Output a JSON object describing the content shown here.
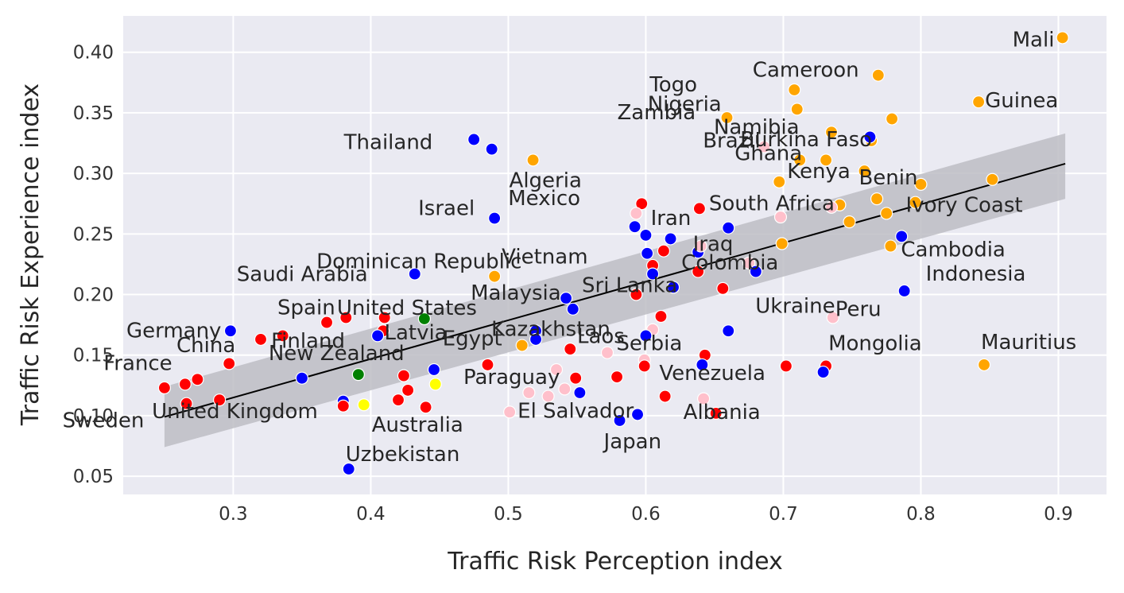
{
  "chart_data": {
    "type": "scatter",
    "xlabel": "Traffic Risk Perception index",
    "ylabel": "Traffic Risk Experience index",
    "xlim": [
      0.22,
      0.935
    ],
    "ylim": [
      0.035,
      0.43
    ],
    "xticks": [
      "0.3",
      "0.4",
      "0.5",
      "0.6",
      "0.7",
      "0.8",
      "0.9"
    ],
    "yticks": [
      "0.05",
      "0.10",
      "0.15",
      "0.20",
      "0.25",
      "0.30",
      "0.35",
      "0.40"
    ],
    "grid": true,
    "background": "#eaeaf2",
    "colors": {
      "red": "#ff0000",
      "blue": "#0000ff",
      "orange": "#ffa500",
      "pink": "#ffc0cb",
      "green": "#008000",
      "yellow": "#ffff00",
      "line": "#000000",
      "ci_band": "#bdbdc4"
    },
    "regression": {
      "x": [
        0.25,
        0.905
      ],
      "y": [
        0.099,
        0.308
      ],
      "ci_upper": [
        0.124,
        0.333
      ],
      "ci_lower": [
        0.074,
        0.279
      ]
    },
    "points": [
      {
        "x": 0.903,
        "y": 0.412,
        "color": "orange",
        "label": "Mali"
      },
      {
        "x": 0.769,
        "y": 0.381,
        "color": "orange",
        "label": "Cameroon"
      },
      {
        "x": 0.708,
        "y": 0.369,
        "color": "orange",
        "label": "Togo"
      },
      {
        "x": 0.71,
        "y": 0.353,
        "color": "orange",
        "label": "Nigeria"
      },
      {
        "x": 0.842,
        "y": 0.359,
        "color": "orange",
        "label": "Guinea"
      },
      {
        "x": 0.659,
        "y": 0.346,
        "color": "orange",
        "label": "Zambia"
      },
      {
        "x": 0.735,
        "y": 0.334,
        "color": "orange",
        "label": "Namibia"
      },
      {
        "x": 0.779,
        "y": 0.345,
        "color": "orange",
        "label": ""
      },
      {
        "x": 0.764,
        "y": 0.327,
        "color": "orange",
        "label": "Burkina Faso"
      },
      {
        "x": 0.763,
        "y": 0.33,
        "color": "blue",
        "label": ""
      },
      {
        "x": 0.686,
        "y": 0.322,
        "color": "pink",
        "label": "Brazil"
      },
      {
        "x": 0.712,
        "y": 0.311,
        "color": "orange",
        "label": "Ghana"
      },
      {
        "x": 0.731,
        "y": 0.311,
        "color": "orange",
        "label": ""
      },
      {
        "x": 0.475,
        "y": 0.328,
        "color": "blue",
        "label": ""
      },
      {
        "x": 0.488,
        "y": 0.32,
        "color": "blue",
        "label": "Thailand"
      },
      {
        "x": 0.518,
        "y": 0.311,
        "color": "orange",
        "label": "Algeria"
      },
      {
        "x": 0.697,
        "y": 0.293,
        "color": "orange",
        "label": "Kenya"
      },
      {
        "x": 0.759,
        "y": 0.302,
        "color": "orange",
        "label": ""
      },
      {
        "x": 0.8,
        "y": 0.291,
        "color": "orange",
        "label": "Benin"
      },
      {
        "x": 0.852,
        "y": 0.295,
        "color": "orange",
        "label": ""
      },
      {
        "x": 0.768,
        "y": 0.279,
        "color": "orange",
        "label": ""
      },
      {
        "x": 0.741,
        "y": 0.274,
        "color": "orange",
        "label": ""
      },
      {
        "x": 0.735,
        "y": 0.272,
        "color": "pink",
        "label": ""
      },
      {
        "x": 0.796,
        "y": 0.276,
        "color": "orange",
        "label": "Ivory Coast"
      },
      {
        "x": 0.775,
        "y": 0.267,
        "color": "orange",
        "label": ""
      },
      {
        "x": 0.748,
        "y": 0.26,
        "color": "orange",
        "label": ""
      },
      {
        "x": 0.597,
        "y": 0.275,
        "color": "red",
        "label": "Mexico"
      },
      {
        "x": 0.639,
        "y": 0.271,
        "color": "red",
        "label": "South Africa"
      },
      {
        "x": 0.593,
        "y": 0.267,
        "color": "pink",
        "label": ""
      },
      {
        "x": 0.698,
        "y": 0.264,
        "color": "pink",
        "label": ""
      },
      {
        "x": 0.49,
        "y": 0.263,
        "color": "blue",
        "label": "Israel"
      },
      {
        "x": 0.592,
        "y": 0.256,
        "color": "blue",
        "label": "Iran"
      },
      {
        "x": 0.66,
        "y": 0.255,
        "color": "blue",
        "label": ""
      },
      {
        "x": 0.6,
        "y": 0.249,
        "color": "blue",
        "label": ""
      },
      {
        "x": 0.618,
        "y": 0.246,
        "color": "blue",
        "label": ""
      },
      {
        "x": 0.786,
        "y": 0.248,
        "color": "blue",
        "label": ""
      },
      {
        "x": 0.699,
        "y": 0.242,
        "color": "orange",
        "label": ""
      },
      {
        "x": 0.778,
        "y": 0.24,
        "color": "orange",
        "label": "Cambodia"
      },
      {
        "x": 0.601,
        "y": 0.234,
        "color": "blue",
        "label": "Vietnam"
      },
      {
        "x": 0.613,
        "y": 0.236,
        "color": "red",
        "label": ""
      },
      {
        "x": 0.638,
        "y": 0.235,
        "color": "blue",
        "label": ""
      },
      {
        "x": 0.64,
        "y": 0.24,
        "color": "pink",
        "label": "Iraq"
      },
      {
        "x": 0.605,
        "y": 0.224,
        "color": "red",
        "label": ""
      },
      {
        "x": 0.675,
        "y": 0.226,
        "color": "pink",
        "label": "Colombia"
      },
      {
        "x": 0.432,
        "y": 0.217,
        "color": "blue",
        "label": "Saudi Arabia"
      },
      {
        "x": 0.49,
        "y": 0.215,
        "color": "orange",
        "label": "Dominican Republic"
      },
      {
        "x": 0.605,
        "y": 0.217,
        "color": "blue",
        "label": ""
      },
      {
        "x": 0.638,
        "y": 0.219,
        "color": "red",
        "label": ""
      },
      {
        "x": 0.68,
        "y": 0.219,
        "color": "blue",
        "label": ""
      },
      {
        "x": 0.62,
        "y": 0.206,
        "color": "blue",
        "label": "Sri Lanka"
      },
      {
        "x": 0.656,
        "y": 0.205,
        "color": "red",
        "label": ""
      },
      {
        "x": 0.788,
        "y": 0.203,
        "color": "blue",
        "label": "Indonesia"
      },
      {
        "x": 0.593,
        "y": 0.2,
        "color": "red",
        "label": ""
      },
      {
        "x": 0.542,
        "y": 0.197,
        "color": "blue",
        "label": "Malaysia"
      },
      {
        "x": 0.547,
        "y": 0.188,
        "color": "blue",
        "label": ""
      },
      {
        "x": 0.439,
        "y": 0.18,
        "color": "green",
        "label": "United States"
      },
      {
        "x": 0.382,
        "y": 0.181,
        "color": "red",
        "label": ""
      },
      {
        "x": 0.41,
        "y": 0.181,
        "color": "red",
        "label": ""
      },
      {
        "x": 0.368,
        "y": 0.177,
        "color": "red",
        "label": "Spain"
      },
      {
        "x": 0.736,
        "y": 0.181,
        "color": "pink",
        "label": "Peru"
      },
      {
        "x": 0.611,
        "y": 0.182,
        "color": "red",
        "label": ""
      },
      {
        "x": 0.298,
        "y": 0.17,
        "color": "blue",
        "label": "Germany"
      },
      {
        "x": 0.409,
        "y": 0.17,
        "color": "red",
        "label": ""
      },
      {
        "x": 0.336,
        "y": 0.166,
        "color": "red",
        "label": ""
      },
      {
        "x": 0.32,
        "y": 0.163,
        "color": "red",
        "label": "China"
      },
      {
        "x": 0.405,
        "y": 0.166,
        "color": "blue",
        "label": "Finland"
      },
      {
        "x": 0.52,
        "y": 0.17,
        "color": "blue",
        "label": "Kazakhstan"
      },
      {
        "x": 0.52,
        "y": 0.163,
        "color": "blue",
        "label": ""
      },
      {
        "x": 0.605,
        "y": 0.171,
        "color": "pink",
        "label": ""
      },
      {
        "x": 0.6,
        "y": 0.166,
        "color": "blue",
        "label": "Serbia"
      },
      {
        "x": 0.66,
        "y": 0.17,
        "color": "blue",
        "label": "Ukraine"
      },
      {
        "x": 0.51,
        "y": 0.158,
        "color": "orange",
        "label": "Egypt"
      },
      {
        "x": 0.545,
        "y": 0.155,
        "color": "red",
        "label": ""
      },
      {
        "x": 0.572,
        "y": 0.152,
        "color": "pink",
        "label": "Laos"
      },
      {
        "x": 0.643,
        "y": 0.15,
        "color": "red",
        "label": ""
      },
      {
        "x": 0.599,
        "y": 0.146,
        "color": "pink",
        "label": ""
      },
      {
        "x": 0.297,
        "y": 0.143,
        "color": "red",
        "label": "France"
      },
      {
        "x": 0.485,
        "y": 0.142,
        "color": "red",
        "label": "Latvia"
      },
      {
        "x": 0.599,
        "y": 0.141,
        "color": "red",
        "label": ""
      },
      {
        "x": 0.641,
        "y": 0.142,
        "color": "blue",
        "label": "Venezuela"
      },
      {
        "x": 0.702,
        "y": 0.141,
        "color": "red",
        "label": ""
      },
      {
        "x": 0.731,
        "y": 0.141,
        "color": "red",
        "label": "Mongolia"
      },
      {
        "x": 0.729,
        "y": 0.136,
        "color": "blue",
        "label": ""
      },
      {
        "x": 0.846,
        "y": 0.142,
        "color": "orange",
        "label": "Mauritius"
      },
      {
        "x": 0.446,
        "y": 0.138,
        "color": "blue",
        "label": ""
      },
      {
        "x": 0.535,
        "y": 0.138,
        "color": "pink",
        "label": "Paraguay"
      },
      {
        "x": 0.391,
        "y": 0.134,
        "color": "green",
        "label": "New Zealand"
      },
      {
        "x": 0.424,
        "y": 0.133,
        "color": "red",
        "label": ""
      },
      {
        "x": 0.35,
        "y": 0.131,
        "color": "blue",
        "label": ""
      },
      {
        "x": 0.549,
        "y": 0.131,
        "color": "red",
        "label": ""
      },
      {
        "x": 0.579,
        "y": 0.132,
        "color": "red",
        "label": ""
      },
      {
        "x": 0.274,
        "y": 0.13,
        "color": "red",
        "label": ""
      },
      {
        "x": 0.265,
        "y": 0.126,
        "color": "red",
        "label": ""
      },
      {
        "x": 0.447,
        "y": 0.126,
        "color": "yellow",
        "label": ""
      },
      {
        "x": 0.25,
        "y": 0.123,
        "color": "red",
        "label": ""
      },
      {
        "x": 0.427,
        "y": 0.121,
        "color": "red",
        "label": ""
      },
      {
        "x": 0.541,
        "y": 0.122,
        "color": "pink",
        "label": ""
      },
      {
        "x": 0.552,
        "y": 0.119,
        "color": "blue",
        "label": ""
      },
      {
        "x": 0.515,
        "y": 0.119,
        "color": "pink",
        "label": ""
      },
      {
        "x": 0.529,
        "y": 0.116,
        "color": "pink",
        "label": ""
      },
      {
        "x": 0.614,
        "y": 0.116,
        "color": "red",
        "label": ""
      },
      {
        "x": 0.642,
        "y": 0.114,
        "color": "pink",
        "label": ""
      },
      {
        "x": 0.29,
        "y": 0.113,
        "color": "red",
        "label": "United Kingdom"
      },
      {
        "x": 0.42,
        "y": 0.113,
        "color": "red",
        "label": ""
      },
      {
        "x": 0.38,
        "y": 0.112,
        "color": "blue",
        "label": ""
      },
      {
        "x": 0.38,
        "y": 0.108,
        "color": "red",
        "label": ""
      },
      {
        "x": 0.266,
        "y": 0.11,
        "color": "red",
        "label": "Sweden"
      },
      {
        "x": 0.395,
        "y": 0.109,
        "color": "yellow",
        "label": "Australia"
      },
      {
        "x": 0.44,
        "y": 0.107,
        "color": "red",
        "label": ""
      },
      {
        "x": 0.501,
        "y": 0.103,
        "color": "pink",
        "label": "El Salvador"
      },
      {
        "x": 0.594,
        "y": 0.101,
        "color": "blue",
        "label": ""
      },
      {
        "x": 0.651,
        "y": 0.102,
        "color": "red",
        "label": "Albania"
      },
      {
        "x": 0.581,
        "y": 0.096,
        "color": "blue",
        "label": "Japan"
      },
      {
        "x": 0.384,
        "y": 0.056,
        "color": "blue",
        "label": "Uzbekistan"
      }
    ]
  }
}
